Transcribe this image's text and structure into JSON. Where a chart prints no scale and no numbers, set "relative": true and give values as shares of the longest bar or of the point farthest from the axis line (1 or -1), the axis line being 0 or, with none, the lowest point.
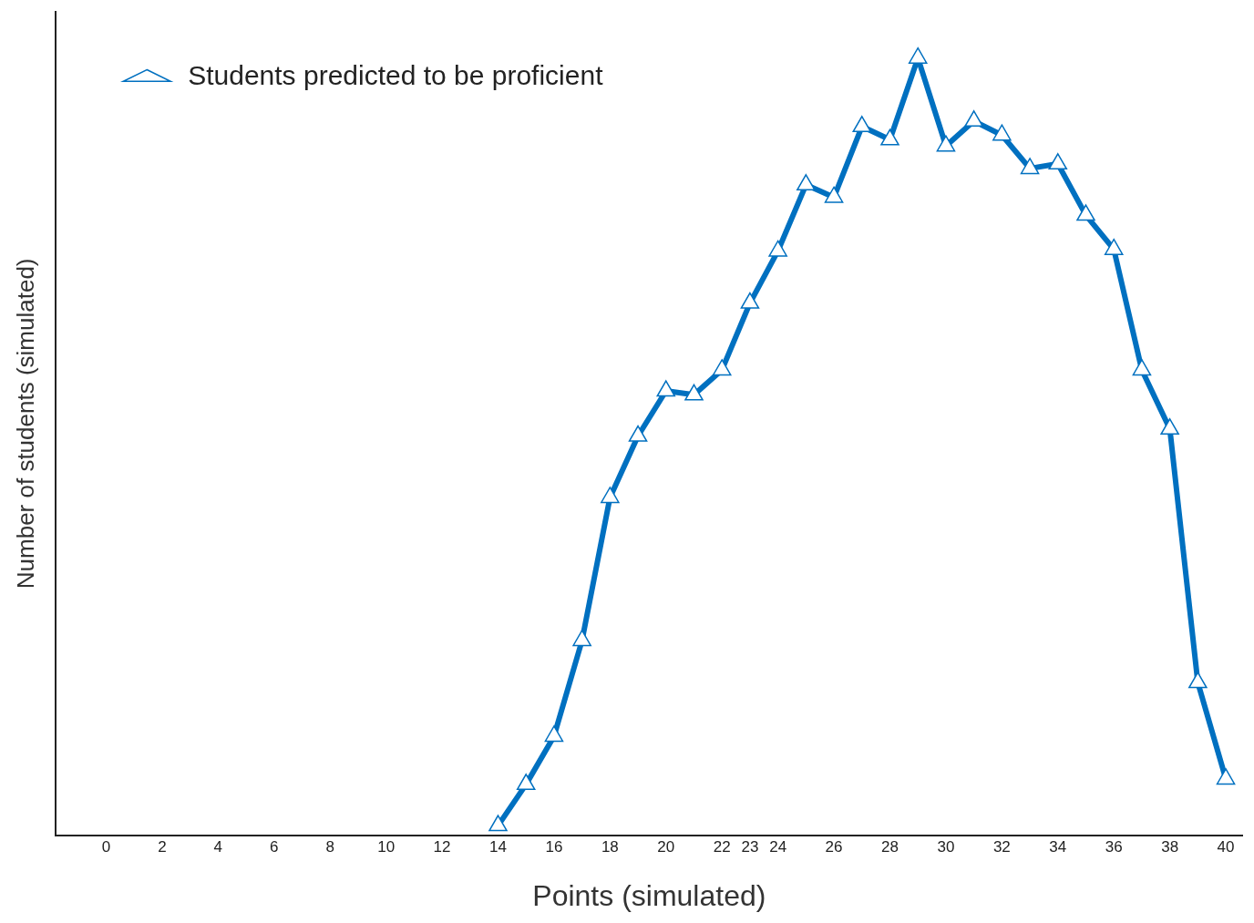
{
  "chart_data": {
    "type": "line",
    "xlabel": "Points (simulated)",
    "ylabel": "Number of students (simulated)",
    "relative": true,
    "x": [
      14,
      15,
      16,
      17,
      18,
      19,
      20,
      21,
      22,
      23,
      24,
      25,
      26,
      27,
      28,
      29,
      30,
      31,
      32,
      33,
      34,
      35,
      36,
      37,
      38,
      39,
      40
    ],
    "xlim": [
      -1.8,
      40.6
    ],
    "xticks": [
      0,
      2,
      4,
      6,
      8,
      10,
      12,
      14,
      16,
      18,
      20,
      22,
      23,
      24,
      26,
      28,
      30,
      32,
      34,
      36,
      38,
      40
    ],
    "series": [
      {
        "name": "Students predicted to be proficient",
        "color": "#0070c0",
        "values": [
          0.013,
          0.066,
          0.128,
          0.251,
          0.435,
          0.514,
          0.572,
          0.567,
          0.599,
          0.685,
          0.752,
          0.837,
          0.821,
          0.912,
          0.895,
          1,
          0.887,
          0.919,
          0.901,
          0.858,
          0.864,
          0.798,
          0.754,
          0.599,
          0.523,
          0.197,
          0.073
        ]
      }
    ],
    "marker": "triangle",
    "line_style": "solid",
    "grid": false,
    "legend": "top left"
  }
}
